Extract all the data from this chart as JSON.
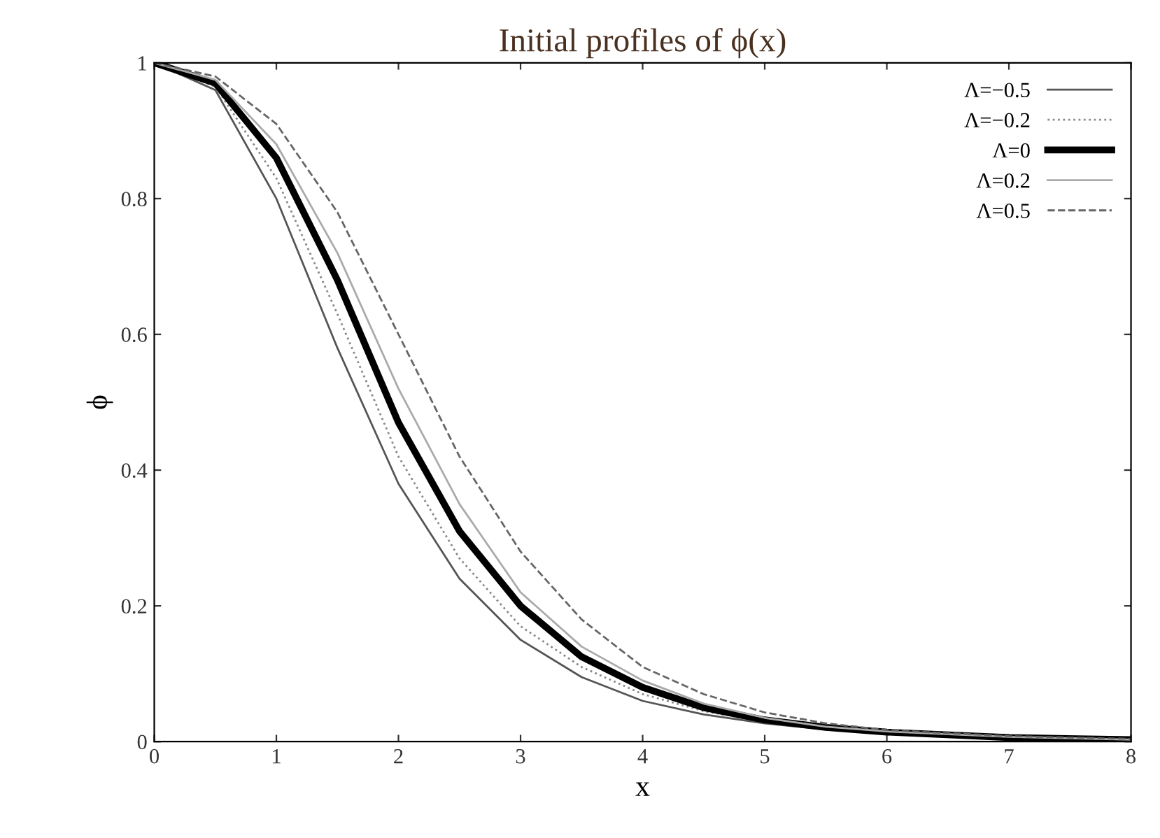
{
  "chart_data": {
    "type": "line",
    "title": "Initial profiles of ϕ(x)",
    "xlabel": "x",
    "ylabel": "ϕ",
    "x": [
      0,
      0.5,
      1,
      1.5,
      2,
      2.5,
      3,
      3.5,
      4,
      4.5,
      5,
      5.5,
      6,
      7,
      8
    ],
    "xlim": [
      0,
      8
    ],
    "ylim": [
      0,
      1
    ],
    "xticks": [
      0,
      1,
      2,
      3,
      4,
      5,
      6,
      7,
      8
    ],
    "yticks": [
      0,
      0.2,
      0.4,
      0.6,
      0.8,
      1
    ],
    "grid": false,
    "legend": "top right",
    "marker": "none",
    "series": [
      {
        "name": "Λ=−0.5",
        "color": "#555555",
        "line_style": "solid",
        "values": [
          1,
          0.96,
          0.8,
          0.58,
          0.38,
          0.24,
          0.15,
          0.095,
          0.06,
          0.04,
          0.027,
          0.018,
          0.012,
          0.005,
          0.002
        ]
      },
      {
        "name": "Λ=−0.2",
        "color": "#888888",
        "line_style": "dotted",
        "values": [
          1,
          0.965,
          0.83,
          0.63,
          0.42,
          0.27,
          0.17,
          0.11,
          0.07,
          0.045,
          0.029,
          0.019,
          0.013,
          0.006,
          0.003
        ]
      },
      {
        "name": "Λ=0",
        "color": "#000000",
        "line_style": "solid",
        "values": [
          1,
          0.97,
          0.86,
          0.68,
          0.47,
          0.31,
          0.2,
          0.125,
          0.08,
          0.05,
          0.032,
          0.021,
          0.014,
          0.006,
          0.003
        ]
      },
      {
        "name": "Λ=0.2",
        "color": "#aaaaaa",
        "line_style": "solid",
        "values": [
          1,
          0.975,
          0.88,
          0.72,
          0.52,
          0.35,
          0.22,
          0.14,
          0.09,
          0.056,
          0.035,
          0.022,
          0.015,
          0.007,
          0.003
        ]
      },
      {
        "name": "Λ=0.5",
        "color": "#666666",
        "line_style": "dashed",
        "values": [
          1,
          0.98,
          0.91,
          0.78,
          0.6,
          0.42,
          0.28,
          0.18,
          0.11,
          0.07,
          0.043,
          0.027,
          0.017,
          0.008,
          0.004
        ]
      }
    ]
  }
}
